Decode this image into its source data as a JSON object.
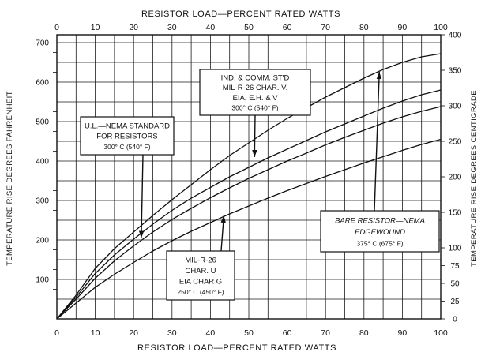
{
  "chart_data": {
    "type": "line",
    "xlabel_top": "RESISTOR LOAD—PERCENT RATED WATTS",
    "xlabel_bottom": "RESISTOR LOAD—PERCENT RATED WATTS",
    "ylabel_left": "TEMPERATURE RISE DEGREES FAHRENHEIT",
    "ylabel_right": "TEMPERATURE RISE DEGREES CENTIGRADE",
    "xlim": [
      0,
      100
    ],
    "ylim_left": [
      0,
      720
    ],
    "x_ticks": [
      0,
      10,
      20,
      30,
      40,
      50,
      60,
      70,
      80,
      90,
      100
    ],
    "y_ticks_left": [
      100,
      200,
      300,
      400,
      500,
      600,
      700
    ],
    "y_ticks_right": [
      0,
      25,
      50,
      75,
      100,
      150,
      200,
      250,
      300,
      350,
      400
    ],
    "grid": true,
    "series": [
      {
        "x": [
          0,
          5,
          10,
          15,
          20,
          25,
          30,
          35,
          40,
          45,
          50,
          55,
          60,
          65,
          70,
          75,
          80,
          85,
          90,
          95,
          100
        ],
        "y": [
          0,
          60,
          128,
          178,
          220,
          262,
          302,
          340,
          378,
          414,
          446,
          478,
          508,
          535,
          562,
          586,
          610,
          632,
          650,
          664,
          672
        ]
      },
      {
        "x": [
          0,
          5,
          10,
          15,
          20,
          25,
          30,
          35,
          40,
          45,
          50,
          55,
          60,
          65,
          70,
          75,
          80,
          85,
          90,
          95,
          100
        ],
        "y": [
          0,
          55,
          115,
          162,
          202,
          240,
          275,
          306,
          333,
          360,
          384,
          408,
          430,
          452,
          474,
          494,
          514,
          534,
          552,
          568,
          580
        ]
      },
      {
        "x": [
          0,
          5,
          10,
          15,
          20,
          25,
          30,
          35,
          40,
          45,
          50,
          55,
          60,
          65,
          70,
          75,
          80,
          85,
          90,
          95,
          100
        ],
        "y": [
          0,
          50,
          103,
          147,
          185,
          220,
          252,
          280,
          307,
          332,
          356,
          378,
          400,
          420,
          441,
          460,
          478,
          496,
          512,
          526,
          538
        ]
      },
      {
        "x": [
          0,
          5,
          10,
          15,
          20,
          25,
          30,
          35,
          40,
          45,
          50,
          55,
          60,
          65,
          70,
          75,
          80,
          85,
          90,
          95,
          100
        ],
        "y": [
          0,
          40,
          80,
          113,
          143,
          172,
          198,
          222,
          244,
          266,
          286,
          306,
          325,
          343,
          361,
          378,
          395,
          411,
          427,
          442,
          455
        ]
      }
    ],
    "annotations": [
      {
        "lines": [
          "U.L.—NEMA STANDARD",
          "FOR RESISTORS",
          "300° C (540° F)"
        ],
        "arrow_to": [
          22,
          205
        ]
      },
      {
        "lines": [
          "IND. & COMM. ST'D",
          "MIL-R-26 CHAR. V.",
          "EIA, E.H. & V",
          "300° C (540° F)"
        ],
        "arrow_to": [
          51.5,
          410
        ]
      },
      {
        "lines": [
          "MIL-R-26",
          "CHAR. U",
          "EIA CHAR G",
          "250° C (450° F)"
        ],
        "arrow_to": [
          43.5,
          262
        ]
      },
      {
        "lines": [
          "BARE RESISTOR—NEMA",
          "EDGEWOUND",
          "375° C (675° F)"
        ],
        "arrow_to": [
          84,
          626
        ]
      }
    ]
  }
}
